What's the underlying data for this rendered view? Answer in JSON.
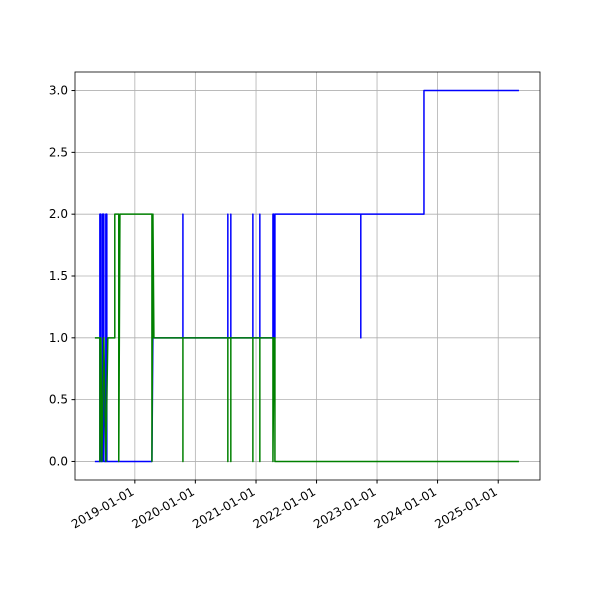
{
  "chart_data": {
    "type": "line",
    "xlim": [
      "2018-01-05",
      "2025-09-10"
    ],
    "ylim": [
      -0.15,
      3.15
    ],
    "xticks": [
      "2019-01-01",
      "2020-01-01",
      "2021-01-01",
      "2022-01-01",
      "2023-01-01",
      "2024-01-01",
      "2025-01-01"
    ],
    "yticks": [
      {
        "value": 0,
        "label": "0.0"
      },
      {
        "value": 0.5,
        "label": "0.5"
      },
      {
        "value": 1,
        "label": "1.0"
      },
      {
        "value": 1.5,
        "label": "1.5"
      },
      {
        "value": 2,
        "label": "2.0"
      },
      {
        "value": 2.5,
        "label": "2.5"
      },
      {
        "value": 3,
        "label": "3.0"
      }
    ],
    "grid": true,
    "series": [
      {
        "color": "blue",
        "x": [
          "2018-05-05",
          "2018-06-04",
          "2018-06-04",
          "2018-06-10",
          "2018-06-10",
          "2018-06-20",
          "2018-06-20",
          "2018-06-28",
          "2018-06-28",
          "2018-07-10",
          "2018-07-10",
          "2018-07-16",
          "2018-07-16",
          "2019-04-14",
          "2019-04-20",
          "2019-10-18",
          "2019-10-18",
          "2019-10-18",
          "2020-07-15",
          "2020-07-15",
          "2020-07-15",
          "2020-08-02",
          "2020-08-02",
          "2020-08-02",
          "2020-12-13",
          "2020-12-13",
          "2020-12-13",
          "2021-01-24",
          "2021-01-24",
          "2021-01-24",
          "2021-04-13",
          "2021-04-13",
          "2021-04-19",
          "2021-04-19",
          "2021-04-25",
          "2021-04-25",
          "2022-09-25",
          "2022-09-25",
          "2022-09-25",
          "2023-10-11",
          "2023-10-11",
          "2025-05-06"
        ],
        "values": [
          0,
          0,
          2,
          2,
          0,
          0,
          2,
          2,
          0,
          0,
          2,
          2,
          0,
          0,
          1,
          1,
          2,
          1,
          1,
          2,
          1,
          1,
          2,
          1,
          1,
          2,
          1,
          1,
          2,
          1,
          1,
          2,
          2,
          1,
          1,
          2,
          2,
          1,
          2,
          2,
          3,
          3
        ]
      },
      {
        "color": "green",
        "x": [
          "2018-05-05",
          "2018-06-04",
          "2018-06-04",
          "2018-06-10",
          "2018-06-16",
          "2018-06-28",
          "2018-07-10",
          "2018-07-22",
          "2018-09-02",
          "2018-09-02",
          "2018-09-26",
          "2018-09-26",
          "2018-10-03",
          "2019-04-14",
          "2019-04-14",
          "2019-04-20",
          "2019-04-26",
          "2019-10-18",
          "2019-10-18",
          "2019-10-18",
          "2020-07-15",
          "2020-07-15",
          "2020-07-15",
          "2020-08-02",
          "2020-08-02",
          "2020-08-02",
          "2020-12-13",
          "2020-12-13",
          "2020-12-13",
          "2021-01-24",
          "2021-01-24",
          "2021-01-24",
          "2021-04-13",
          "2021-04-13",
          "2021-04-19",
          "2021-04-25",
          "2021-04-25",
          "2025-05-06"
        ],
        "values": [
          1,
          1,
          0,
          1,
          0,
          1,
          0,
          1,
          1,
          2,
          2,
          0,
          2,
          2,
          0,
          2,
          1,
          1,
          0,
          1,
          1,
          0,
          1,
          1,
          0,
          1,
          1,
          0,
          1,
          1,
          0,
          1,
          1,
          0,
          1,
          1,
          0,
          0
        ]
      }
    ]
  }
}
